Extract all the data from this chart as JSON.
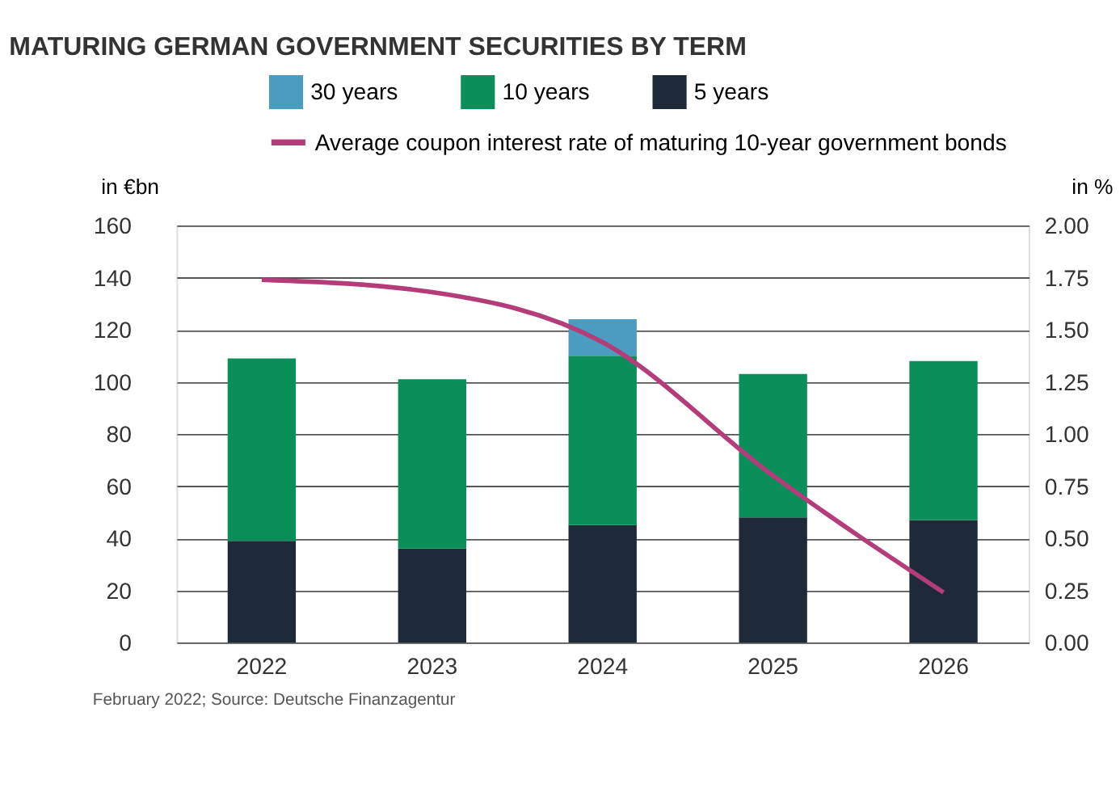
{
  "chart_data": {
    "type": "bar",
    "title": "MATURING GERMAN GOVERNMENT SECURITIES BY TERM",
    "ylabel": "in €bn",
    "y2label": "in %",
    "categories": [
      "2022",
      "2023",
      "2024",
      "2025",
      "2026"
    ],
    "stacked": true,
    "series": [
      {
        "name": "5 years",
        "color": "#1e2a38",
        "values": [
          39,
          36,
          45,
          48,
          47
        ]
      },
      {
        "name": "10 years",
        "color": "#0a8f5a",
        "values": [
          70,
          65,
          65,
          55,
          61
        ]
      },
      {
        "name": "30 years",
        "color": "#4a9dbf",
        "values": [
          null,
          null,
          14,
          null,
          null
        ]
      },
      {
        "name": "Average coupon interest rate of maturing 10-year government bonds",
        "type": "line",
        "axis": "y2",
        "color": "#b43c78",
        "values": [
          1.74,
          1.68,
          1.44,
          0.8,
          0.24
        ]
      }
    ],
    "ylim": [
      0,
      160
    ],
    "yticks": [
      0,
      20,
      40,
      60,
      80,
      100,
      120,
      140,
      160
    ],
    "y2lim": [
      0,
      2
    ],
    "y2ticks": [
      {
        "value": 0,
        "label": "0.00"
      },
      0.25,
      {
        "value": 0.5,
        "label": "0.50"
      },
      0.75,
      {
        "value": 1,
        "label": "1.00"
      },
      1.25,
      {
        "value": 1.5,
        "label": "1.50"
      },
      1.75,
      {
        "value": 2,
        "label": "2.00"
      }
    ],
    "grid": "y",
    "legend": "top",
    "annotations": [
      "February 2022; Source: Deutsche Finanzagentur"
    ]
  }
}
